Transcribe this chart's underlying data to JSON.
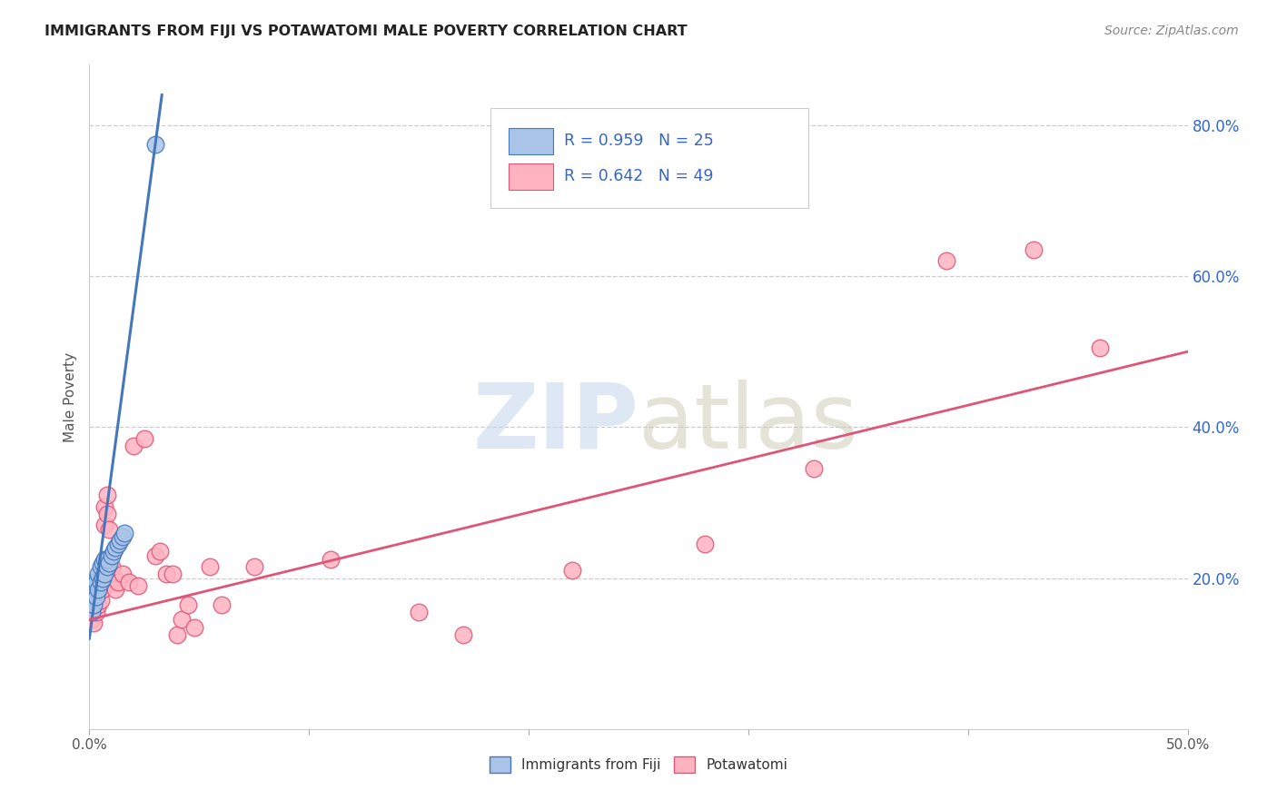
{
  "title": "IMMIGRANTS FROM FIJI VS POTAWATOMI MALE POVERTY CORRELATION CHART",
  "source": "Source: ZipAtlas.com",
  "ylabel": "Male Poverty",
  "yticks": [
    0.0,
    0.2,
    0.4,
    0.6,
    0.8
  ],
  "ytick_labels": [
    "",
    "20.0%",
    "40.0%",
    "60.0%",
    "80.0%"
  ],
  "xrange": [
    0.0,
    0.5
  ],
  "yrange": [
    0.0,
    0.88
  ],
  "legend1_label": "R = 0.959   N = 25",
  "legend2_label": "R = 0.642   N = 49",
  "fiji_color": "#aac4e8",
  "fiji_edge_color": "#4477bb",
  "potawatomi_color": "#ffb3c1",
  "potawatomi_edge_color": "#e05577",
  "legend_label1": "Immigrants from Fiji",
  "legend_label2": "Potawatomi",
  "fiji_points": [
    [
      0.001,
      0.155
    ],
    [
      0.001,
      0.175
    ],
    [
      0.002,
      0.165
    ],
    [
      0.002,
      0.195
    ],
    [
      0.003,
      0.175
    ],
    [
      0.003,
      0.195
    ],
    [
      0.004,
      0.185
    ],
    [
      0.004,
      0.205
    ],
    [
      0.005,
      0.195
    ],
    [
      0.005,
      0.215
    ],
    [
      0.006,
      0.2
    ],
    [
      0.006,
      0.22
    ],
    [
      0.007,
      0.205
    ],
    [
      0.007,
      0.225
    ],
    [
      0.008,
      0.215
    ],
    [
      0.008,
      0.225
    ],
    [
      0.009,
      0.22
    ],
    [
      0.01,
      0.23
    ],
    [
      0.011,
      0.235
    ],
    [
      0.012,
      0.24
    ],
    [
      0.013,
      0.245
    ],
    [
      0.014,
      0.25
    ],
    [
      0.015,
      0.255
    ],
    [
      0.016,
      0.26
    ],
    [
      0.03,
      0.775
    ]
  ],
  "potawatomi_points": [
    [
      0.001,
      0.145
    ],
    [
      0.001,
      0.16
    ],
    [
      0.002,
      0.14
    ],
    [
      0.002,
      0.17
    ],
    [
      0.002,
      0.18
    ],
    [
      0.003,
      0.155
    ],
    [
      0.003,
      0.175
    ],
    [
      0.003,
      0.19
    ],
    [
      0.004,
      0.165
    ],
    [
      0.004,
      0.195
    ],
    [
      0.005,
      0.17
    ],
    [
      0.005,
      0.195
    ],
    [
      0.006,
      0.185
    ],
    [
      0.006,
      0.205
    ],
    [
      0.007,
      0.27
    ],
    [
      0.007,
      0.295
    ],
    [
      0.008,
      0.285
    ],
    [
      0.008,
      0.31
    ],
    [
      0.009,
      0.265
    ],
    [
      0.01,
      0.195
    ],
    [
      0.01,
      0.215
    ],
    [
      0.011,
      0.2
    ],
    [
      0.012,
      0.185
    ],
    [
      0.013,
      0.195
    ],
    [
      0.015,
      0.205
    ],
    [
      0.018,
      0.195
    ],
    [
      0.02,
      0.375
    ],
    [
      0.022,
      0.19
    ],
    [
      0.025,
      0.385
    ],
    [
      0.03,
      0.23
    ],
    [
      0.032,
      0.235
    ],
    [
      0.035,
      0.205
    ],
    [
      0.038,
      0.205
    ],
    [
      0.04,
      0.125
    ],
    [
      0.042,
      0.145
    ],
    [
      0.045,
      0.165
    ],
    [
      0.048,
      0.135
    ],
    [
      0.055,
      0.215
    ],
    [
      0.06,
      0.165
    ],
    [
      0.075,
      0.215
    ],
    [
      0.11,
      0.225
    ],
    [
      0.15,
      0.155
    ],
    [
      0.17,
      0.125
    ],
    [
      0.22,
      0.21
    ],
    [
      0.28,
      0.245
    ],
    [
      0.33,
      0.345
    ],
    [
      0.39,
      0.62
    ],
    [
      0.43,
      0.635
    ],
    [
      0.46,
      0.505
    ]
  ],
  "fiji_trendline": [
    [
      0.0,
      0.12
    ],
    [
      0.033,
      0.84
    ]
  ],
  "potawatomi_trendline": [
    [
      0.0,
      0.145
    ],
    [
      0.5,
      0.5
    ]
  ]
}
